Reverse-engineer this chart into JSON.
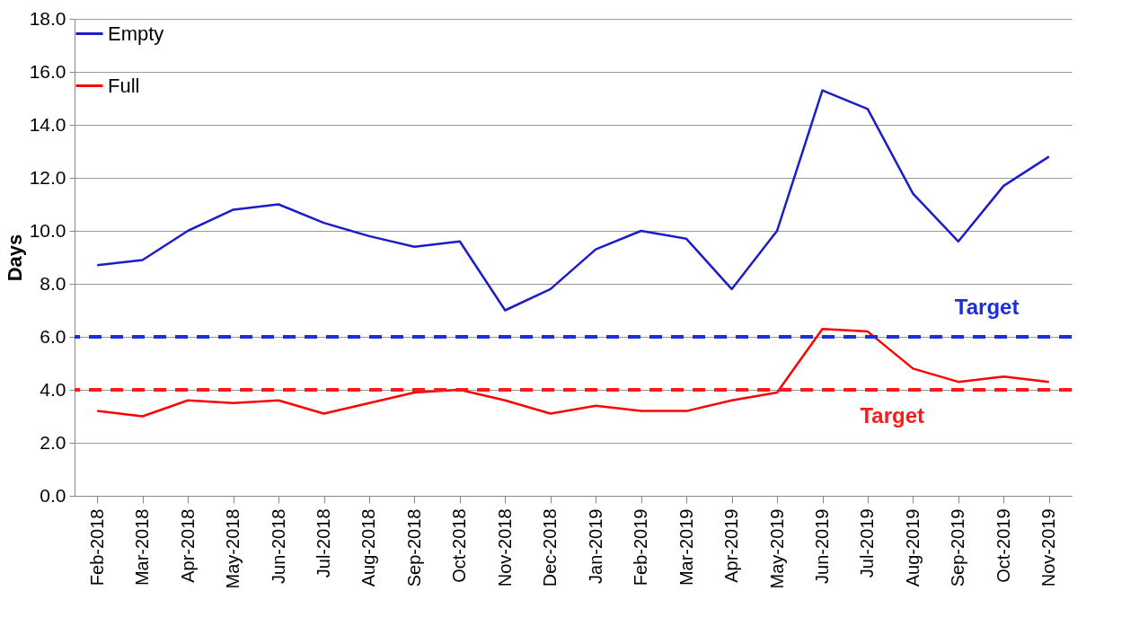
{
  "chart_data": {
    "type": "line",
    "ylabel": "Days",
    "categories": [
      "Feb-2018",
      "Mar-2018",
      "Apr-2018",
      "May-2018",
      "Jun-2018",
      "Jul-2018",
      "Aug-2018",
      "Sep-2018",
      "Oct-2018",
      "Nov-2018",
      "Dec-2018",
      "Jan-2019",
      "Feb-2019",
      "Mar-2019",
      "Apr-2019",
      "May-2019",
      "Jun-2019",
      "Jul-2019",
      "Aug-2019",
      "Sep-2019",
      "Oct-2019",
      "Nov-2019"
    ],
    "series": [
      {
        "name": "Empty",
        "color": "#1c1cc8",
        "values": [
          8.7,
          8.9,
          10.0,
          10.8,
          11.0,
          10.3,
          9.8,
          9.4,
          9.6,
          7.0,
          7.8,
          9.3,
          10.0,
          9.7,
          7.8,
          10.0,
          15.3,
          14.6,
          11.4,
          9.6,
          11.7,
          12.8
        ]
      },
      {
        "name": "Full",
        "color": "#ff0000",
        "values": [
          3.2,
          3.0,
          3.6,
          3.5,
          3.6,
          3.1,
          3.5,
          3.9,
          4.0,
          3.6,
          3.1,
          3.4,
          3.2,
          3.2,
          3.6,
          3.9,
          6.3,
          6.2,
          4.8,
          4.3,
          4.5,
          4.3
        ]
      }
    ],
    "ylim": [
      0,
      18
    ],
    "yticks": [
      {
        "value": 0,
        "label": "0.0"
      },
      {
        "value": 2,
        "label": "2.0"
      },
      {
        "value": 4,
        "label": "4.0"
      },
      {
        "value": 6,
        "label": "6.0"
      },
      {
        "value": 8,
        "label": "8.0"
      },
      {
        "value": 10,
        "label": "10.0"
      },
      {
        "value": 12,
        "label": "12.0"
      },
      {
        "value": 14,
        "label": "14.0"
      },
      {
        "value": 16,
        "label": "16.0"
      },
      {
        "value": 18,
        "label": "18.0"
      }
    ],
    "ref_lines": [
      {
        "axis": "y",
        "value": 6,
        "label": "Target",
        "color": "#1c2fd8",
        "line_style": "dashed"
      },
      {
        "axis": "y",
        "value": 4,
        "label": "Target",
        "color": "#ff1a1a",
        "line_style": "dashed"
      }
    ],
    "grid": "y",
    "legend": "top left",
    "marker": "none",
    "line_style": "solid"
  }
}
